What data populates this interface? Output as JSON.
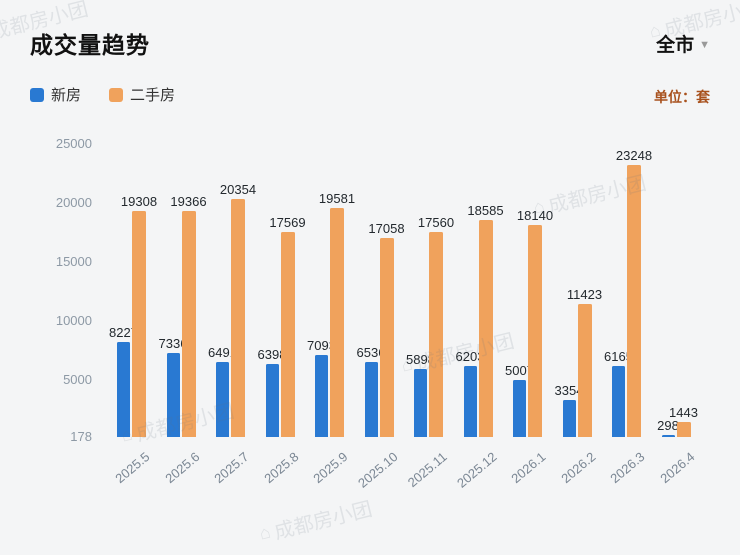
{
  "header": {
    "city_selector": "全市",
    "unit_label": "单位：套"
  },
  "watermark": {
    "text": "成都房小团"
  },
  "chart_data": {
    "type": "bar",
    "title": "成交量趋势",
    "unit": "套",
    "categories": [
      "2025.5",
      "2025.6",
      "2025.7",
      "2025.8",
      "2025.9",
      "2025.10",
      "2025.11",
      "2025.12",
      "2026.1",
      "2026.2",
      "2026.3",
      "2026.4"
    ],
    "series": [
      {
        "name": "新房",
        "color": "#2979d2",
        "values": [
          8227,
          7336,
          6491,
          6398,
          7093,
          6536,
          5898,
          6203,
          5007,
          3354,
          6165,
          298
        ]
      },
      {
        "name": "二手房",
        "color": "#f0a25c",
        "values": [
          19308,
          19366,
          20354,
          17569,
          19581,
          17058,
          17560,
          18585,
          18140,
          11423,
          23248,
          1443
        ]
      }
    ],
    "y_ticks": [
      178,
      5000,
      10000,
      15000,
      20000,
      25000
    ],
    "y_min": 178,
    "y_max": 25000,
    "grid": false,
    "legend_position": "top-left",
    "value_labels": true
  }
}
